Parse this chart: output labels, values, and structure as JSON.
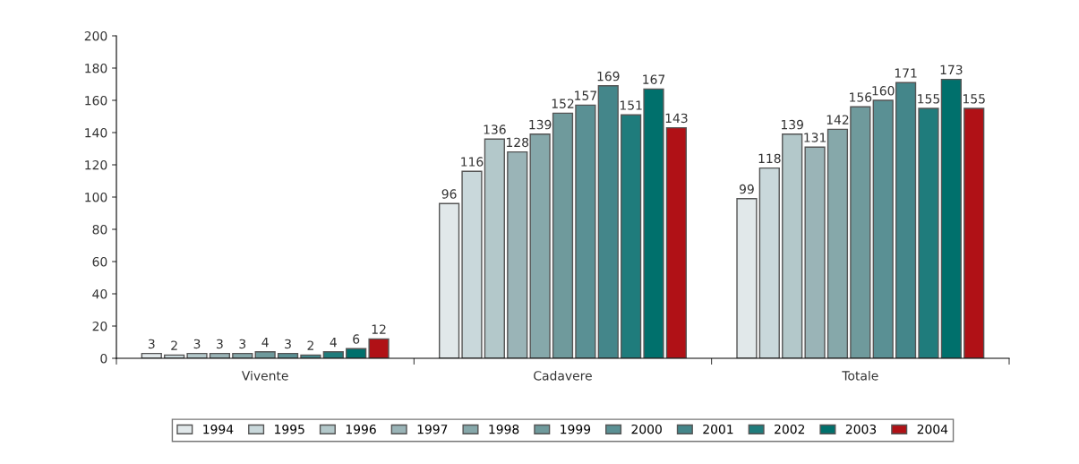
{
  "chart_data": {
    "type": "bar",
    "categories": [
      "Vivente",
      "Cadavere",
      "Totale"
    ],
    "series": [
      {
        "name": "1994",
        "color": "#e1e8ea",
        "values": [
          3,
          96,
          99
        ]
      },
      {
        "name": "1995",
        "color": "#c9d8db",
        "values": [
          2,
          116,
          118
        ]
      },
      {
        "name": "1996",
        "color": "#b3c8ca",
        "values": [
          3,
          136,
          139
        ]
      },
      {
        "name": "1997",
        "color": "#9ab4b7",
        "values": [
          3,
          128,
          131
        ]
      },
      {
        "name": "1998",
        "color": "#86a8aa",
        "values": [
          3,
          139,
          142
        ]
      },
      {
        "name": "1999",
        "color": "#6f9a9c",
        "values": [
          4,
          152,
          156
        ]
      },
      {
        "name": "2000",
        "color": "#5a9094",
        "values": [
          3,
          157,
          160
        ]
      },
      {
        "name": "2001",
        "color": "#44868a",
        "values": [
          2,
          169,
          171
        ]
      },
      {
        "name": "2002",
        "color": "#1f7c7c",
        "values": [
          4,
          151,
          155
        ]
      },
      {
        "name": "2003",
        "color": "#00706c",
        "values": [
          6,
          167,
          173
        ]
      },
      {
        "name": "2004",
        "color": "#b01116",
        "values": [
          12,
          143,
          155
        ]
      }
    ],
    "ylim": [
      0,
      200
    ],
    "yticks": [
      0,
      20,
      40,
      60,
      80,
      100,
      120,
      140,
      160,
      180,
      200
    ],
    "data_labels": true,
    "grid": false,
    "legend": "bottom"
  }
}
